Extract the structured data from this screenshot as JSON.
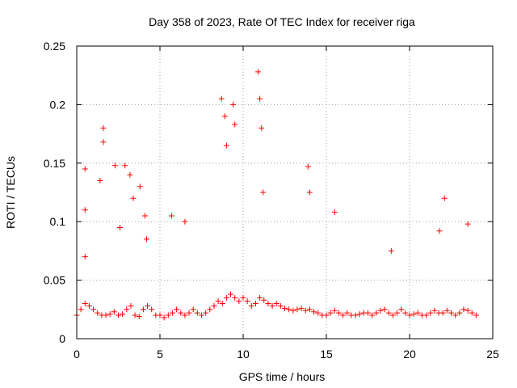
{
  "chart_data": {
    "type": "scatter",
    "title": "Day 358 of 2023, Rate Of TEC Index for receiver riga",
    "xlabel": "GPS time / hours",
    "ylabel": "ROTI / TECUs",
    "xlim": [
      0,
      25
    ],
    "ylim": [
      0,
      0.25
    ],
    "xticks": [
      0,
      5,
      10,
      15,
      20,
      25
    ],
    "yticks": [
      0,
      0.05,
      0.1,
      0.15,
      0.2,
      0.25
    ],
    "xtick_labels": [
      "0",
      "5",
      "10",
      "15",
      "20",
      "25"
    ],
    "ytick_labels": [
      "0",
      "0.05",
      "0.1",
      "0.15",
      "0.2",
      "0.25"
    ],
    "grid": true,
    "grid_style": "dotted",
    "marker": "+",
    "series": [
      {
        "color": "#ff0000",
        "x": [
          0.0,
          0.25,
          0.5,
          0.75,
          1.0,
          1.25,
          1.5,
          1.75,
          2.0,
          2.25,
          2.5,
          2.75,
          3.0,
          3.25,
          3.5,
          3.75,
          4.0,
          4.25,
          4.5,
          4.75,
          5.0,
          5.25,
          5.5,
          5.75,
          6.0,
          6.25,
          6.5,
          6.75,
          7.0,
          7.25,
          7.5,
          7.75,
          8.0,
          8.25,
          8.5,
          8.75,
          9.0,
          9.25,
          9.5,
          9.75,
          10.0,
          10.25,
          10.5,
          10.75,
          11.0,
          11.25,
          11.5,
          11.75,
          12.0,
          12.25,
          12.5,
          12.75,
          13.0,
          13.25,
          13.5,
          13.75,
          14.0,
          14.25,
          14.5,
          14.75,
          15.0,
          15.25,
          15.5,
          15.75,
          16.0,
          16.25,
          16.5,
          16.75,
          17.0,
          17.25,
          17.5,
          17.75,
          18.0,
          18.25,
          18.5,
          18.75,
          19.0,
          19.25,
          19.5,
          19.75,
          20.0,
          20.25,
          20.5,
          20.75,
          21.0,
          21.25,
          21.5,
          21.75,
          22.0,
          22.25,
          22.5,
          22.75,
          23.0,
          23.25,
          23.5,
          23.75,
          24.0,
          0.5,
          0.5,
          0.5,
          1.4,
          1.6,
          1.6,
          2.3,
          2.6,
          2.9,
          3.2,
          3.4,
          3.8,
          4.1,
          4.2,
          5.7,
          6.5,
          8.7,
          8.9,
          9.0,
          9.4,
          9.5,
          10.9,
          11.0,
          11.1,
          11.2,
          13.9,
          14.0,
          15.5,
          18.9,
          21.8,
          22.1,
          23.5
        ],
        "y": [
          0.02,
          0.025,
          0.03,
          0.028,
          0.025,
          0.022,
          0.02,
          0.02,
          0.021,
          0.023,
          0.02,
          0.021,
          0.025,
          0.028,
          0.02,
          0.019,
          0.025,
          0.028,
          0.025,
          0.02,
          0.02,
          0.018,
          0.02,
          0.022,
          0.025,
          0.022,
          0.02,
          0.022,
          0.025,
          0.022,
          0.02,
          0.022,
          0.025,
          0.028,
          0.032,
          0.03,
          0.035,
          0.038,
          0.035,
          0.032,
          0.035,
          0.032,
          0.028,
          0.03,
          0.035,
          0.033,
          0.03,
          0.028,
          0.03,
          0.028,
          0.026,
          0.025,
          0.024,
          0.025,
          0.026,
          0.024,
          0.025,
          0.023,
          0.022,
          0.02,
          0.02,
          0.022,
          0.024,
          0.022,
          0.02,
          0.022,
          0.02,
          0.02,
          0.021,
          0.022,
          0.022,
          0.02,
          0.022,
          0.024,
          0.025,
          0.022,
          0.02,
          0.022,
          0.025,
          0.022,
          0.02,
          0.021,
          0.022,
          0.02,
          0.02,
          0.022,
          0.024,
          0.022,
          0.022,
          0.024,
          0.022,
          0.02,
          0.022,
          0.025,
          0.024,
          0.022,
          0.02,
          0.145,
          0.11,
          0.07,
          0.135,
          0.18,
          0.168,
          0.148,
          0.095,
          0.148,
          0.14,
          0.12,
          0.13,
          0.105,
          0.085,
          0.105,
          0.1,
          0.205,
          0.19,
          0.165,
          0.2,
          0.183,
          0.228,
          0.205,
          0.18,
          0.125,
          0.147,
          0.125,
          0.108,
          0.075,
          0.092,
          0.12,
          0.098
        ]
      }
    ]
  }
}
